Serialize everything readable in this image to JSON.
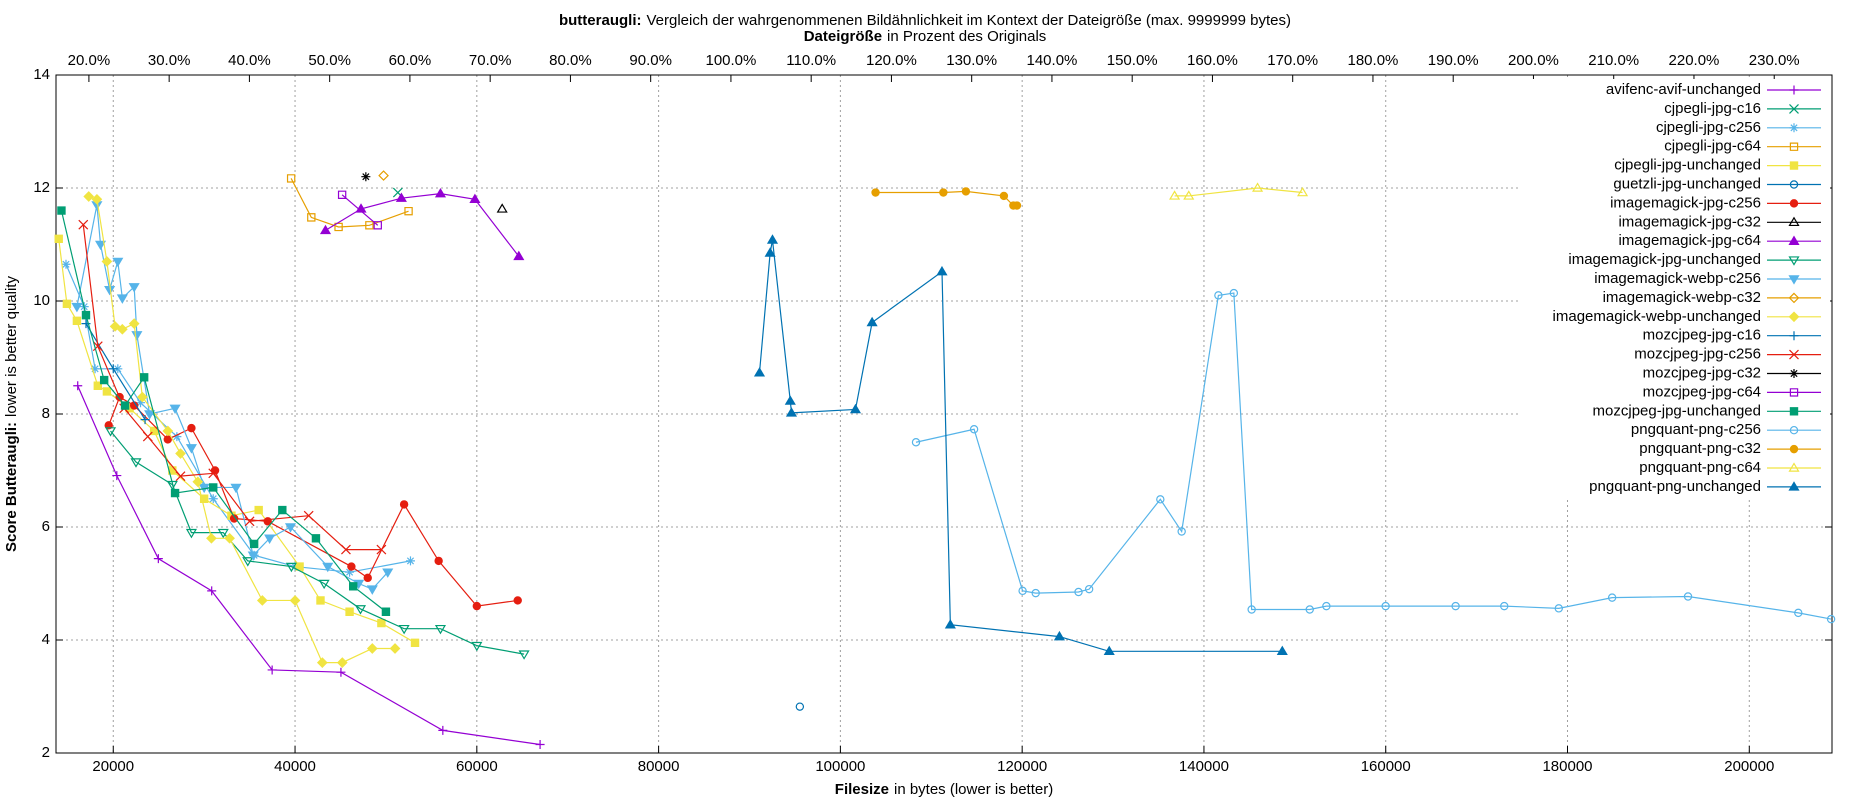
{
  "chart_data": {
    "type": "line",
    "title": [
      "butteraugli:",
      "Vergleich der wahrgenommenen Bildähnlichkeit im Kontext der Dateigröße (max. 9999999 bytes)"
    ],
    "subtitle": [
      "Dateigröße",
      "in Prozent des Originals"
    ],
    "x_label": [
      "Filesize",
      "in bytes (lower is better)"
    ],
    "y_label": [
      "Score Butteraugli:",
      "lower is better quality"
    ],
    "xlim": [
      13700,
      209100
    ],
    "xticks": [
      20000,
      40000,
      60000,
      80000,
      100000,
      120000,
      140000,
      160000,
      180000,
      200000
    ],
    "ylim": [
      2,
      14
    ],
    "yticks": [
      2,
      4,
      6,
      8,
      10,
      12,
      14
    ],
    "x2lim": [
      15.9,
      237.2
    ],
    "x2ticks": [
      {
        "value": 20,
        "label": "20.0%"
      },
      {
        "value": 30,
        "label": "30.0%"
      },
      {
        "value": 40,
        "label": "40.0%"
      },
      {
        "value": 50,
        "label": "50.0%"
      },
      {
        "value": 60,
        "label": "60.0%"
      },
      {
        "value": 70,
        "label": "70.0%"
      },
      {
        "value": 80,
        "label": "80.0%"
      },
      {
        "value": 90,
        "label": "90.0%"
      },
      {
        "value": 100,
        "label": "100.0%"
      },
      {
        "value": 110,
        "label": "110.0%"
      },
      {
        "value": 120,
        "label": "120.0%"
      },
      {
        "value": 130,
        "label": "130.0%"
      },
      {
        "value": 140,
        "label": "140.0%"
      },
      {
        "value": 150,
        "label": "150.0%"
      },
      {
        "value": 160,
        "label": "160.0%"
      },
      {
        "value": 170,
        "label": "170.0%"
      },
      {
        "value": 180,
        "label": "180.0%"
      },
      {
        "value": 190,
        "label": "190.0%"
      },
      {
        "value": 200,
        "label": "200.0%"
      },
      {
        "value": 210,
        "label": "210.0%"
      },
      {
        "value": 220,
        "label": "220.0%"
      },
      {
        "value": 230,
        "label": "230.0%"
      }
    ],
    "grid": true,
    "legend": "top-right",
    "series": [
      {
        "name": "avifenc-avif-unchanged",
        "color": "#9400d3",
        "marker": "plus",
        "filled": false,
        "x": [
          16090,
          20390,
          24960,
          30830,
          37480,
          45050,
          56260,
          66960
        ],
        "values": [
          8.5,
          6.91,
          5.44,
          4.87,
          3.47,
          3.43,
          2.4,
          2.15
        ]
      },
      {
        "name": "cjpegli-jpg-c16",
        "color": "#009e73",
        "marker": "cross",
        "filled": false,
        "x": [
          51310
        ],
        "values": [
          11.92
        ]
      },
      {
        "name": "cjpegli-jpg-c256",
        "color": "#56b4e9",
        "marker": "star",
        "filled": false,
        "x": [
          14800,
          16800,
          18000,
          20500,
          23000,
          27000,
          31000,
          35500,
          40000,
          46000,
          52700
        ],
        "values": [
          10.65,
          9.9,
          8.8,
          8.8,
          8.2,
          7.6,
          6.5,
          5.5,
          5.3,
          5.2,
          5.4
        ]
      },
      {
        "name": "cjpegli-jpg-c64",
        "color": "#e69f00",
        "marker": "square",
        "filled": false,
        "x": [
          39570,
          41790,
          44790,
          48180,
          52490
        ],
        "values": [
          12.17,
          11.48,
          11.31,
          11.34,
          11.59
        ]
      },
      {
        "name": "cjpegli-jpg-unchanged",
        "color": "#f0e442",
        "marker": "square",
        "filled": true,
        "x": [
          14000,
          14900,
          16000,
          18300,
          19300,
          21800,
          24500,
          26500,
          30000,
          33000,
          36000,
          40500,
          42800,
          46000,
          49500,
          53200
        ],
        "values": [
          11.1,
          9.95,
          9.65,
          8.5,
          8.4,
          8.1,
          7.7,
          7.0,
          6.5,
          6.2,
          6.3,
          5.3,
          4.7,
          4.5,
          4.3,
          3.95
        ]
      },
      {
        "name": "guetzli-jpg-unchanged",
        "color": "#0072b2",
        "marker": "circle",
        "filled": false,
        "x": [
          95540
        ],
        "values": [
          2.82
        ]
      },
      {
        "name": "imagemagick-jpg-c256",
        "color": "#e51e10",
        "marker": "circle",
        "filled": true,
        "x": [
          19500,
          20700,
          22300,
          26000,
          28600,
          31200,
          33300,
          37000,
          46200,
          48000,
          52000,
          55800,
          60000,
          64500
        ],
        "values": [
          7.8,
          8.3,
          8.15,
          7.55,
          7.75,
          7.0,
          6.15,
          6.1,
          5.3,
          5.1,
          6.4,
          5.4,
          4.6,
          4.7
        ]
      },
      {
        "name": "imagemagick-jpg-c32",
        "color": "#000000",
        "marker": "triangle",
        "filled": false,
        "x": [
          62790
        ],
        "values": [
          11.63
        ]
      },
      {
        "name": "imagemagick-jpg-c64",
        "color": "#9400d3",
        "marker": "triangle",
        "filled": true,
        "x": [
          43350,
          47260,
          51700,
          56000,
          59790,
          64620
        ],
        "values": [
          11.25,
          11.63,
          11.82,
          11.9,
          11.8,
          10.79
        ]
      },
      {
        "name": "imagemagick-jpg-unchanged",
        "color": "#009e73",
        "marker": "itriangle",
        "filled": false,
        "x": [
          19700,
          22500,
          26500,
          28600,
          32100,
          34800,
          39600,
          43200,
          47200,
          52000,
          56000,
          60000,
          65200
        ],
        "values": [
          7.7,
          7.15,
          6.75,
          5.9,
          5.9,
          5.4,
          5.3,
          5.0,
          4.55,
          4.2,
          4.2,
          3.9,
          3.75
        ]
      },
      {
        "name": "imagemagick-webp-c256",
        "color": "#56b4e9",
        "marker": "itriangle",
        "filled": true,
        "x": [
          16000,
          18200,
          18600,
          19600,
          20500,
          21000,
          22300,
          22600,
          24000,
          26800,
          28600,
          30000,
          33500,
          35400,
          37200,
          39500,
          43600,
          47000,
          48500,
          50200
        ],
        "values": [
          9.9,
          11.7,
          11.0,
          10.2,
          10.7,
          10.05,
          10.25,
          9.4,
          8.0,
          8.1,
          7.4,
          6.7,
          6.7,
          5.5,
          5.8,
          6.0,
          5.3,
          5.0,
          4.9,
          5.2
        ]
      },
      {
        "name": "imagemagick-webp-c32",
        "color": "#e69f00",
        "marker": "diamond",
        "filled": false,
        "x": [
          49740
        ],
        "values": [
          12.22
        ]
      },
      {
        "name": "imagemagick-webp-unchanged",
        "color": "#f0e442",
        "marker": "diamond",
        "filled": true,
        "x": [
          17300,
          18200,
          19300,
          20200,
          21000,
          22300,
          23200,
          26000,
          27400,
          29300,
          30800,
          32800,
          36400,
          40000,
          43000,
          45200,
          48500,
          51000
        ],
        "values": [
          11.85,
          11.8,
          10.7,
          9.55,
          9.5,
          9.6,
          8.3,
          7.7,
          7.3,
          6.8,
          5.8,
          5.8,
          4.7,
          4.7,
          3.6,
          3.6,
          3.85,
          3.85
        ]
      },
      {
        "name": "mozcjpeg-jpg-c16",
        "color": "#0072b2",
        "marker": "plus",
        "filled": false,
        "x": [
          17000,
          20000,
          23500
        ],
        "values": [
          9.6,
          8.8,
          7.9
        ]
      },
      {
        "name": "mozcjpeg-jpg-c256",
        "color": "#e51e10",
        "marker": "cross",
        "filled": false,
        "x": [
          16700,
          18300,
          21200,
          23800,
          27400,
          31000,
          35000,
          41500,
          45600,
          49500
        ],
        "values": [
          11.35,
          9.2,
          8.1,
          7.6,
          6.9,
          6.95,
          6.1,
          6.2,
          5.6,
          5.6
        ]
      },
      {
        "name": "mozcjpeg-jpg-c32",
        "color": "#000000",
        "marker": "star",
        "filled": false,
        "x": [
          47790
        ],
        "values": [
          12.2
        ]
      },
      {
        "name": "mozcjpeg-jpg-c64",
        "color": "#9400d3",
        "marker": "square",
        "filled": false,
        "x": [
          45180,
          49100
        ],
        "values": [
          11.88,
          11.34
        ]
      },
      {
        "name": "mozcjpeg-jpg-unchanged",
        "color": "#009e73",
        "marker": "square",
        "filled": true,
        "x": [
          14300,
          17000,
          19000,
          21300,
          23400,
          26800,
          31000,
          35500,
          38600,
          42300,
          46400,
          50000
        ],
        "values": [
          11.6,
          9.75,
          8.6,
          8.15,
          8.65,
          6.6,
          6.7,
          5.7,
          6.3,
          5.8,
          4.95,
          4.5
        ]
      },
      {
        "name": "pngquant-png-c256",
        "color": "#56b4e9",
        "marker": "circle",
        "filled": false,
        "x": [
          108320,
          114710,
          120050,
          121490,
          126200,
          127370,
          135200,
          137550,
          141590,
          143290,
          145250,
          151640,
          153470,
          159990,
          167690,
          173040,
          179040,
          184910,
          193260,
          205390,
          209000
        ],
        "values": [
          7.5,
          7.73,
          4.87,
          4.83,
          4.85,
          4.9,
          6.49,
          5.92,
          10.1,
          10.14,
          4.54,
          4.54,
          4.6,
          4.6,
          4.6,
          4.6,
          4.56,
          4.75,
          4.77,
          4.48,
          4.37
        ]
      },
      {
        "name": "pngquant-png-c32",
        "color": "#e69f00",
        "marker": "circle",
        "filled": true,
        "x": [
          103870,
          111330,
          113810,
          117990,
          119030,
          119430
        ],
        "values": [
          11.92,
          11.92,
          11.94,
          11.86,
          11.69,
          11.69
        ]
      },
      {
        "name": "pngquant-png-c64",
        "color": "#f0e442",
        "marker": "triangle",
        "filled": false,
        "x": [
          136770,
          138330,
          145900,
          150850
        ],
        "values": [
          11.86,
          11.86,
          12.0,
          11.92
        ]
      },
      {
        "name": "pngquant-png-unchanged",
        "color": "#0072b2",
        "marker": "triangle",
        "filled": true,
        "x": [
          91100,
          92270,
          92530,
          94490,
          94620,
          101660,
          103490,
          111180,
          112100,
          124100,
          129580,
          148620
        ],
        "values": [
          8.73,
          10.85,
          11.08,
          8.23,
          8.02,
          8.08,
          9.62,
          10.52,
          4.27,
          4.06,
          3.8,
          3.8
        ]
      }
    ]
  }
}
